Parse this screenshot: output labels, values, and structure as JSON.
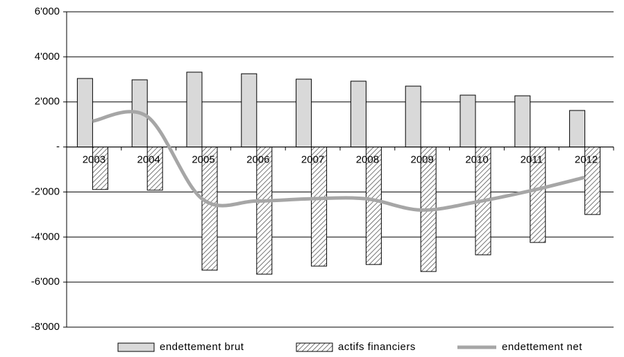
{
  "chart_data": {
    "type": "bar-line",
    "categories": [
      "2003",
      "2004",
      "2005",
      "2006",
      "2007",
      "2008",
      "2009",
      "2010",
      "2011",
      "2012"
    ],
    "series": [
      {
        "name": "endettement brut",
        "type": "bar",
        "color": "#d9d9d9",
        "values": [
          3040,
          2980,
          3320,
          3250,
          3010,
          2920,
          2700,
          2300,
          2270,
          1620
        ]
      },
      {
        "name": "actifs financiers",
        "type": "bar",
        "pattern": "hatch",
        "color": "#ffffff",
        "values": [
          -1890,
          -1920,
          -5470,
          -5650,
          -5290,
          -5220,
          -5530,
          -4790,
          -4240,
          -3000
        ]
      },
      {
        "name": "endettement net",
        "type": "line",
        "color": "#a6a6a6",
        "values": [
          1150,
          1350,
          -2300,
          -2400,
          -2300,
          -2300,
          -2800,
          -2450,
          -1950,
          -1350
        ]
      }
    ],
    "ylim": [
      -8000,
      6000
    ],
    "yticks": [
      {
        "value": -8000,
        "label": "-8'000"
      },
      {
        "value": -6000,
        "label": "-6'000"
      },
      {
        "value": -4000,
        "label": "-4'000"
      },
      {
        "value": -2000,
        "label": "-2'000"
      },
      {
        "value": 0,
        "label": "-"
      },
      {
        "value": 2000,
        "label": "2'000"
      },
      {
        "value": 4000,
        "label": "4'000"
      },
      {
        "value": 6000,
        "label": "6'000"
      }
    ],
    "grid": true,
    "legend": "bottom"
  }
}
